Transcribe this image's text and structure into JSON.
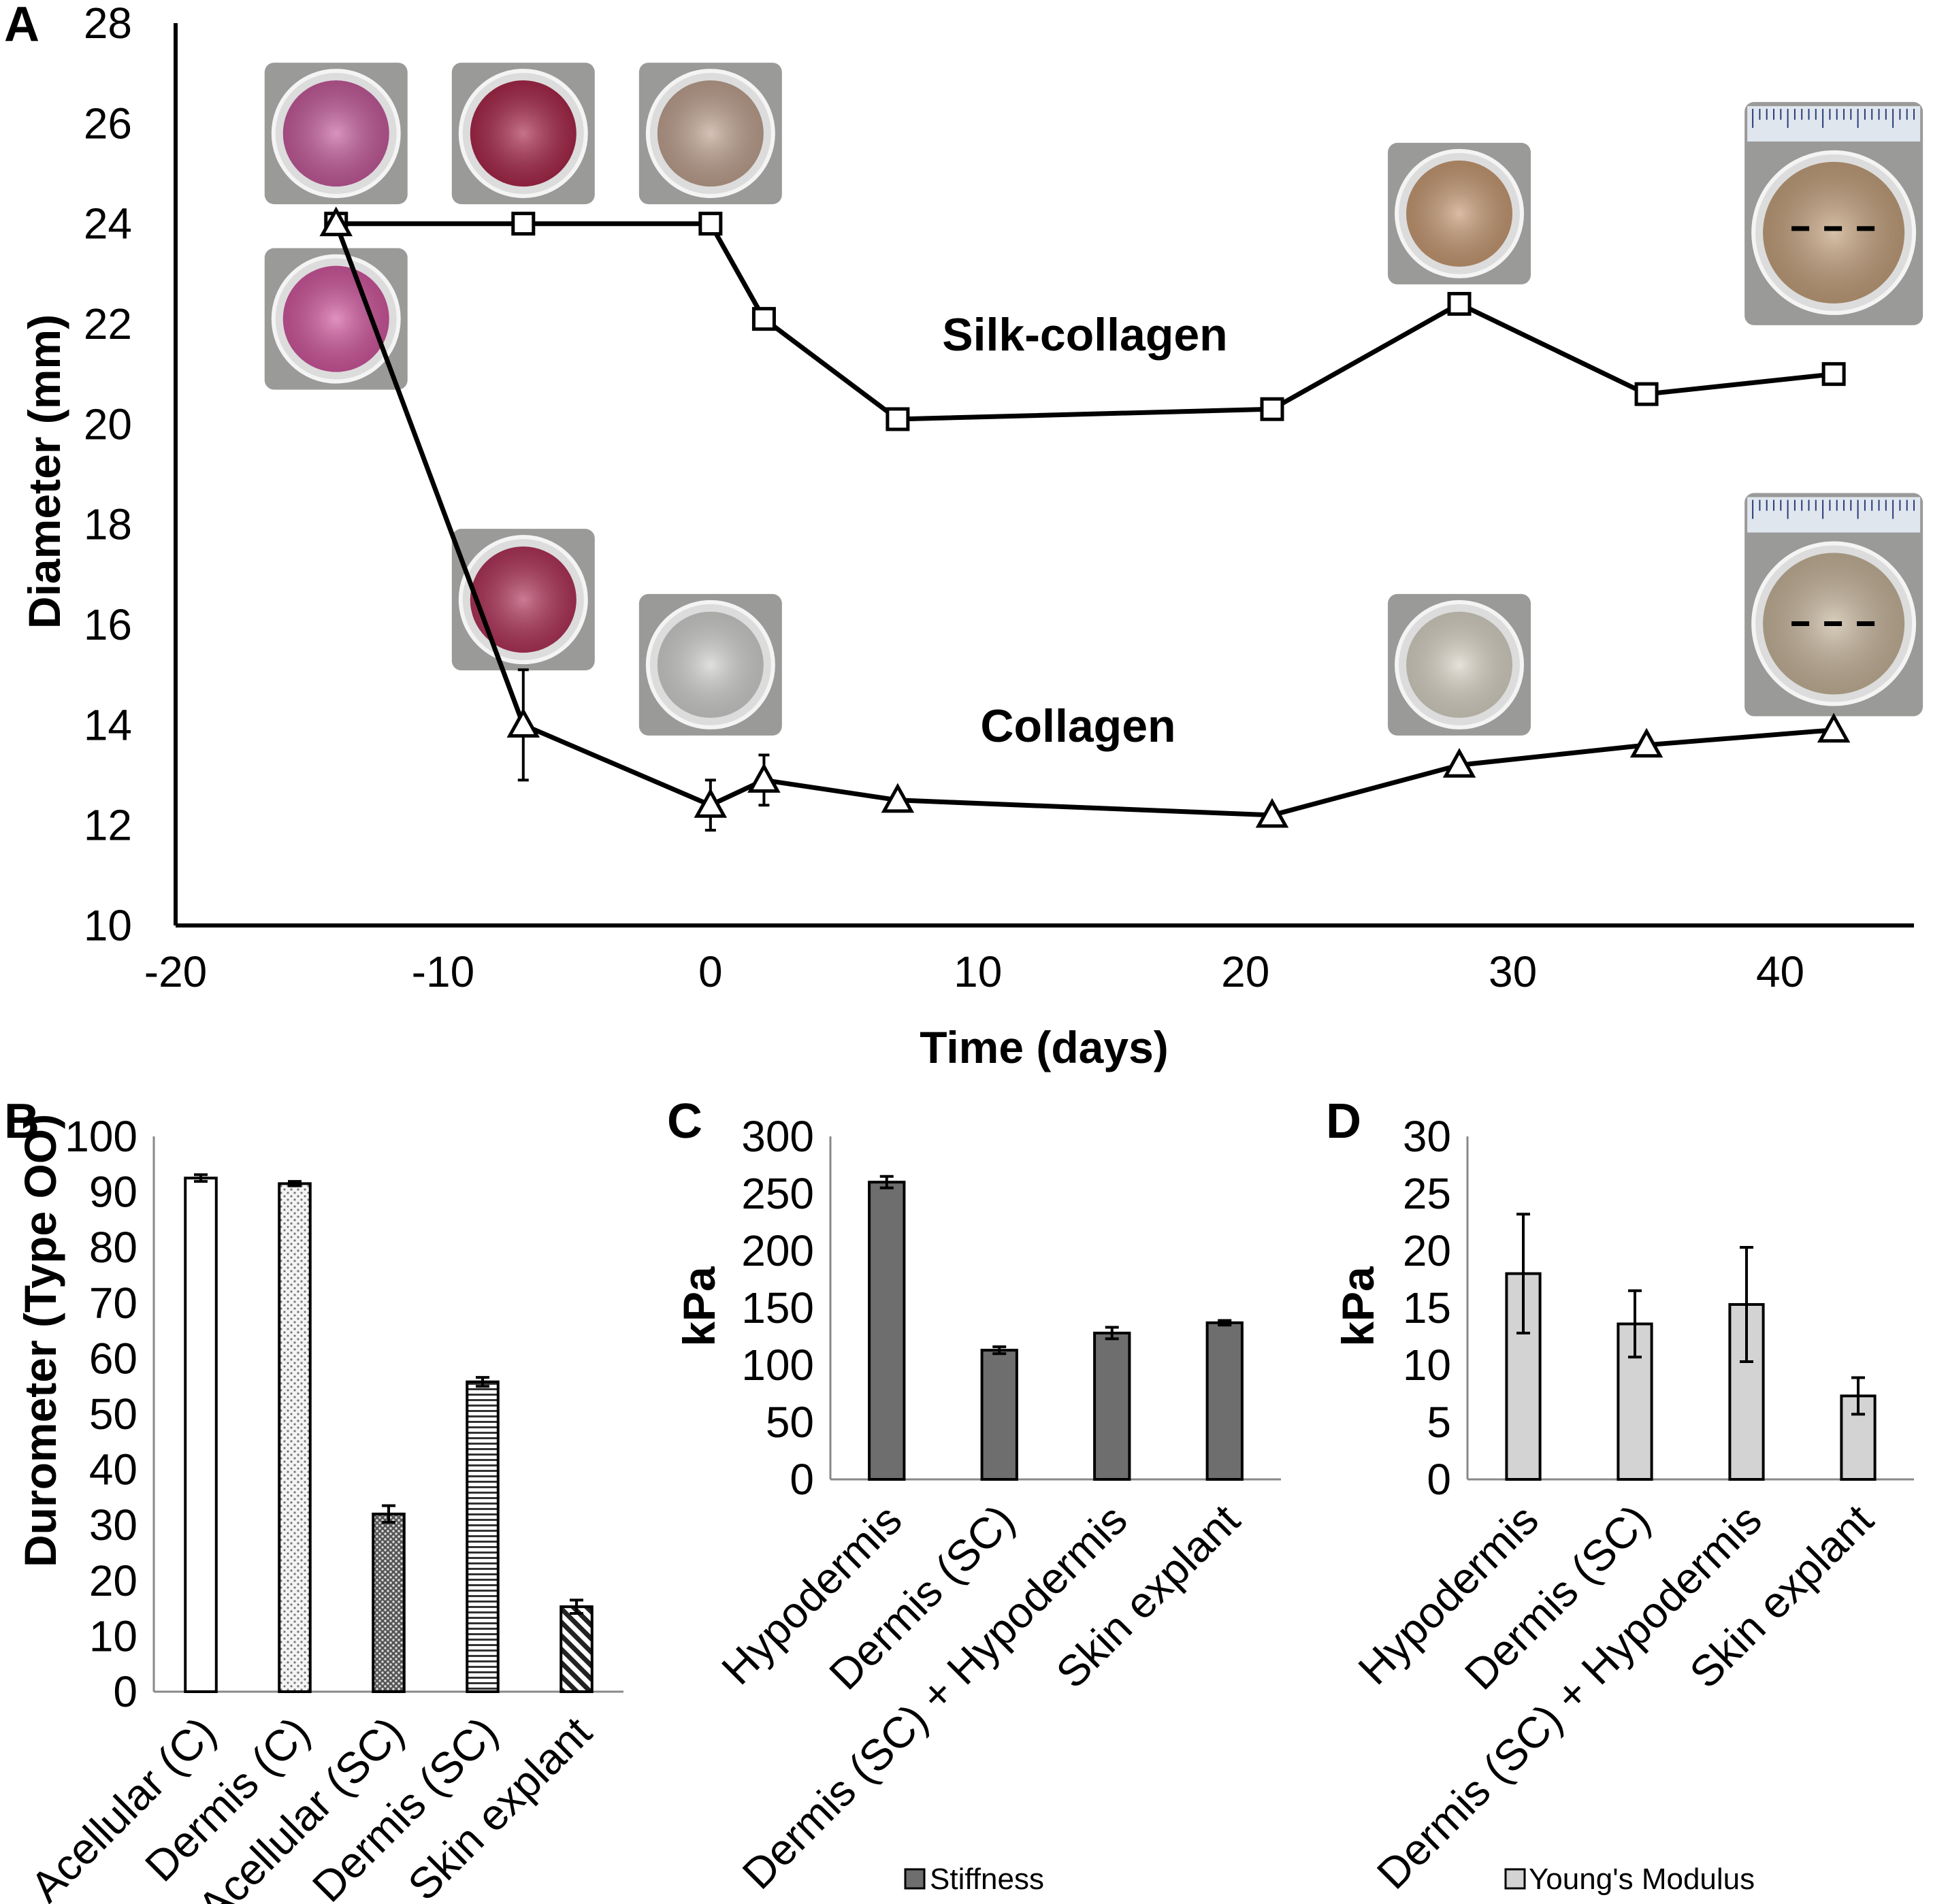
{
  "chart_data": [
    {
      "panel": "A",
      "type": "line",
      "xlabel": "Time (days)",
      "ylabel": "Diameter (mm)",
      "xlim": [
        -20,
        45
      ],
      "ylim": [
        10,
        28
      ],
      "xticks": [
        -20,
        -10,
        0,
        10,
        20,
        30,
        40
      ],
      "yticks": [
        10,
        12,
        14,
        16,
        18,
        20,
        22,
        24,
        26,
        28
      ],
      "grid": false,
      "series": [
        {
          "name": "Silk-collagen",
          "marker": "square",
          "x": [
            -14,
            -7,
            0,
            2,
            7,
            21,
            28,
            35,
            42
          ],
          "y": [
            24.0,
            24.0,
            24.0,
            22.1,
            20.1,
            20.3,
            22.4,
            20.6,
            21.0
          ],
          "err": [
            0,
            0,
            0,
            0.2,
            0,
            0,
            0,
            0,
            0
          ]
        },
        {
          "name": "Collagen",
          "marker": "triangle",
          "x": [
            -14,
            -7,
            0,
            2,
            7,
            21,
            28,
            35,
            42
          ],
          "y": [
            24.0,
            14.0,
            12.4,
            12.9,
            12.5,
            12.2,
            13.2,
            13.6,
            13.9
          ],
          "err": [
            0,
            1.1,
            0.5,
            0.5,
            0,
            0,
            0,
            0,
            0
          ]
        }
      ],
      "photos": [
        {
          "name": "sc-photo-day-minus14",
          "x": -14,
          "y": 25.8,
          "color": "#c45b9b"
        },
        {
          "name": "sc-photo-day-minus7",
          "x": -7,
          "y": 25.8,
          "color": "#a8284a"
        },
        {
          "name": "sc-photo-day-0",
          "x": 0,
          "y": 25.8,
          "color": "#bfa290"
        },
        {
          "name": "sc-photo-day-28",
          "x": 28,
          "y": 24.2,
          "color": "#c79a74"
        },
        {
          "name": "sc-photo-day-42",
          "x": 42,
          "y": 24.2,
          "color": "#c3a07c",
          "ruler": true
        },
        {
          "name": "c-photo-day-minus14",
          "x": -14,
          "y": 22.1,
          "color": "#d0579d"
        },
        {
          "name": "c-photo-day-minus7",
          "x": -7,
          "y": 16.5,
          "color": "#b0345a"
        },
        {
          "name": "c-photo-day-0",
          "x": 0,
          "y": 15.2,
          "color": "#cfcfcd"
        },
        {
          "name": "c-photo-day-28",
          "x": 28,
          "y": 15.2,
          "color": "#d7d2c4"
        },
        {
          "name": "c-photo-day-42",
          "x": 42,
          "y": 16.4,
          "color": "#c6b49a",
          "ruler": true
        }
      ]
    },
    {
      "panel": "B",
      "type": "bar",
      "ylabel": "Durometer (Type OO)",
      "ylim": [
        0,
        100
      ],
      "yticks": [
        0,
        10,
        20,
        30,
        40,
        50,
        60,
        70,
        80,
        90,
        100
      ],
      "categories": [
        "Acellular (C)",
        "Dermis (C)",
        "Acellular (SC)",
        "Dermis (SC)",
        "Skin explant"
      ],
      "values": [
        92.5,
        91.5,
        32,
        55.8,
        15.3
      ],
      "errors": [
        0.6,
        0.4,
        1.5,
        0.8,
        1.2
      ],
      "patterns": [
        "solid-white",
        "fine-dots",
        "dense-dots",
        "horizontal-lines",
        "diagonal-lines"
      ]
    },
    {
      "panel": "C",
      "type": "bar",
      "ylabel": "kPa",
      "ylim": [
        0,
        300
      ],
      "yticks": [
        0,
        50,
        100,
        150,
        200,
        250,
        300
      ],
      "categories": [
        "Hypodermis",
        "Dermis (SC)",
        "Dermis (SC) + Hypodermis",
        "Skin explant"
      ],
      "values": [
        260,
        113,
        128,
        137
      ],
      "errors": [
        5,
        3,
        5,
        2
      ],
      "color": "#6e6e6e",
      "legend": "Stiffness",
      "legend_position": "bottom"
    },
    {
      "panel": "D",
      "type": "bar",
      "ylabel": "kPa",
      "ylim": [
        0,
        30
      ],
      "yticks": [
        0,
        5,
        10,
        15,
        20,
        25,
        30
      ],
      "categories": [
        "Hypodermis",
        "Dermis (SC)",
        "Dermis (SC) + Hypodermis",
        "Skin explant"
      ],
      "values": [
        18,
        13.6,
        15.3,
        7.3
      ],
      "errors": [
        5.2,
        2.9,
        5,
        1.6
      ],
      "color": "#d3d3d3",
      "legend": "Young's Modulus",
      "legend_position": "bottom"
    }
  ]
}
